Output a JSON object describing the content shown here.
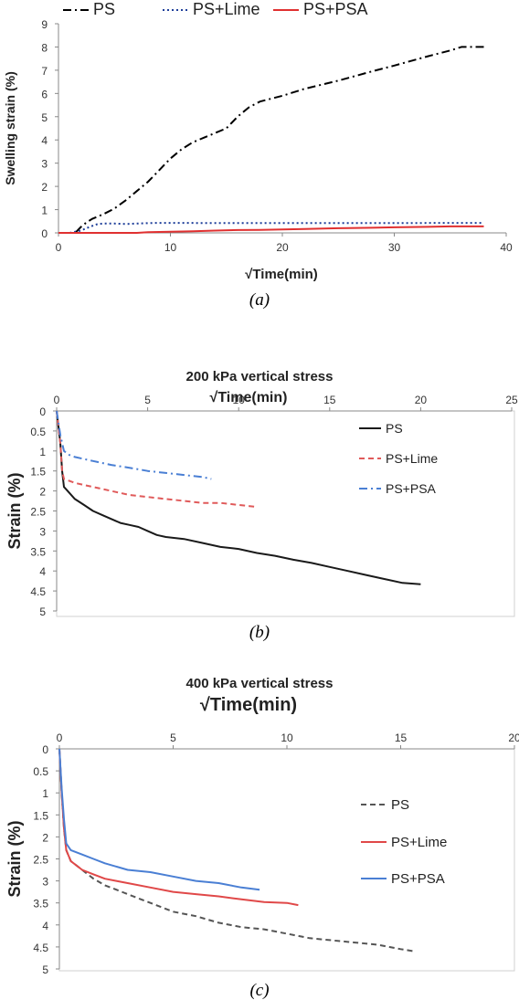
{
  "chart_data": [
    {
      "type": "line",
      "title": "",
      "caption": "(a)",
      "xlabel": "√Time(min)",
      "ylabel": "Swelling strain (%)",
      "xlim": [
        0,
        40
      ],
      "ylim": [
        0,
        9
      ],
      "xticks": [
        0,
        10,
        20,
        30,
        40
      ],
      "yticks": [
        0,
        1,
        2,
        3,
        4,
        5,
        6,
        7,
        8,
        9
      ],
      "x_axis_position": "bottom",
      "y_inverted": false,
      "grid": false,
      "legend_position": "top",
      "series": [
        {
          "name": "PS",
          "color": "#000000",
          "dash": "dashdot",
          "points": [
            [
              0,
              0
            ],
            [
              1.2,
              0
            ],
            [
              1.6,
              0.05
            ],
            [
              2,
              0.25
            ],
            [
              2.5,
              0.45
            ],
            [
              3,
              0.6
            ],
            [
              4,
              0.8
            ],
            [
              5,
              1.05
            ],
            [
              6,
              1.4
            ],
            [
              7,
              1.8
            ],
            [
              8,
              2.2
            ],
            [
              9,
              2.7
            ],
            [
              10,
              3.2
            ],
            [
              11,
              3.6
            ],
            [
              12,
              3.9
            ],
            [
              13,
              4.1
            ],
            [
              15,
              4.5
            ],
            [
              16,
              5.0
            ],
            [
              17,
              5.4
            ],
            [
              18,
              5.65
            ],
            [
              20,
              5.9
            ],
            [
              22,
              6.2
            ],
            [
              25,
              6.55
            ],
            [
              28,
              6.95
            ],
            [
              30,
              7.2
            ],
            [
              33,
              7.6
            ],
            [
              35,
              7.85
            ],
            [
              36,
              8.0
            ],
            [
              37,
              8.0
            ],
            [
              38,
              8.0
            ]
          ]
        },
        {
          "name": "PS+Lime",
          "color": "#1f3f9a",
          "dash": "dotted",
          "points": [
            [
              1,
              0
            ],
            [
              1.5,
              0.05
            ],
            [
              2,
              0.1
            ],
            [
              2.5,
              0.2
            ],
            [
              3,
              0.3
            ],
            [
              3.5,
              0.38
            ],
            [
              4,
              0.4
            ],
            [
              5,
              0.4
            ],
            [
              6,
              0.38
            ],
            [
              7,
              0.4
            ],
            [
              8,
              0.42
            ],
            [
              9,
              0.43
            ],
            [
              10,
              0.43
            ],
            [
              15,
              0.42
            ],
            [
              20,
              0.42
            ],
            [
              25,
              0.42
            ],
            [
              30,
              0.42
            ],
            [
              35,
              0.43
            ],
            [
              38,
              0.43
            ]
          ]
        },
        {
          "name": "PS+PSA",
          "color": "#e03030",
          "dash": "solid",
          "points": [
            [
              0,
              0
            ],
            [
              7,
              0
            ],
            [
              8,
              0.03
            ],
            [
              10,
              0.05
            ],
            [
              12,
              0.07
            ],
            [
              14,
              0.1
            ],
            [
              16,
              0.12
            ],
            [
              18,
              0.13
            ],
            [
              20,
              0.15
            ],
            [
              22,
              0.17
            ],
            [
              25,
              0.2
            ],
            [
              28,
              0.22
            ],
            [
              30,
              0.24
            ],
            [
              33,
              0.26
            ],
            [
              35,
              0.28
            ],
            [
              38,
              0.28
            ]
          ]
        }
      ]
    },
    {
      "type": "line",
      "title": "200 kPa vertical stress",
      "caption": "(b)",
      "xlabel": "√Time(min)",
      "ylabel": "Strain (%)",
      "xlim": [
        0,
        25
      ],
      "ylim": [
        0,
        5
      ],
      "xticks": [
        0,
        5,
        10,
        15,
        20,
        25
      ],
      "yticks": [
        0,
        0.5,
        1,
        1.5,
        2,
        2.5,
        3,
        3.5,
        4,
        4.5,
        5
      ],
      "x_axis_position": "top",
      "y_inverted": true,
      "grid": false,
      "legend_position": "right",
      "series": [
        {
          "name": "PS",
          "color": "#1a1a1a",
          "dash": "solid",
          "points": [
            [
              0,
              0
            ],
            [
              0.2,
              0.8
            ],
            [
              0.3,
              1.5
            ],
            [
              0.4,
              1.9
            ],
            [
              0.6,
              2.0
            ],
            [
              1,
              2.2
            ],
            [
              1.5,
              2.35
            ],
            [
              2,
              2.5
            ],
            [
              2.5,
              2.6
            ],
            [
              3,
              2.7
            ],
            [
              3.5,
              2.8
            ],
            [
              4,
              2.85
            ],
            [
              4.5,
              2.9
            ],
            [
              5,
              3.0
            ],
            [
              5.5,
              3.1
            ],
            [
              6,
              3.15
            ],
            [
              7,
              3.2
            ],
            [
              8,
              3.3
            ],
            [
              9,
              3.4
            ],
            [
              10,
              3.45
            ],
            [
              11,
              3.55
            ],
            [
              12,
              3.62
            ],
            [
              13,
              3.72
            ],
            [
              14,
              3.8
            ],
            [
              15,
              3.9
            ],
            [
              16,
              4.0
            ],
            [
              17,
              4.1
            ],
            [
              18,
              4.2
            ],
            [
              19,
              4.3
            ],
            [
              20,
              4.33
            ]
          ]
        },
        {
          "name": "PS+Lime",
          "color": "#e05a5a",
          "dash": "dashed",
          "points": [
            [
              0,
              0
            ],
            [
              0.2,
              0.8
            ],
            [
              0.3,
              1.5
            ],
            [
              0.4,
              1.7
            ],
            [
              0.7,
              1.75
            ],
            [
              1,
              1.8
            ],
            [
              2,
              1.9
            ],
            [
              3,
              2.0
            ],
            [
              4,
              2.1
            ],
            [
              5,
              2.15
            ],
            [
              6,
              2.2
            ],
            [
              7,
              2.25
            ],
            [
              8,
              2.3
            ],
            [
              9,
              2.3
            ],
            [
              10,
              2.35
            ],
            [
              11,
              2.4
            ]
          ]
        },
        {
          "name": "PS+PSA",
          "color": "#4a7fd4",
          "dash": "dashdot",
          "points": [
            [
              0,
              0
            ],
            [
              0.2,
              0.6
            ],
            [
              0.4,
              1.0
            ],
            [
              0.7,
              1.1
            ],
            [
              1,
              1.15
            ],
            [
              2,
              1.25
            ],
            [
              3,
              1.35
            ],
            [
              4,
              1.42
            ],
            [
              5,
              1.5
            ],
            [
              6,
              1.55
            ],
            [
              7,
              1.6
            ],
            [
              8,
              1.65
            ],
            [
              8.5,
              1.7
            ]
          ]
        }
      ]
    },
    {
      "type": "line",
      "title": "400 kPa vertical stress",
      "caption": "(c)",
      "xlabel": "√Time(min)",
      "ylabel": "Strain (%)",
      "xlim": [
        0,
        20
      ],
      "ylim": [
        0,
        5
      ],
      "xticks": [
        0,
        5,
        10,
        15,
        20
      ],
      "yticks": [
        0,
        0.5,
        1,
        1.5,
        2,
        2.5,
        3,
        3.5,
        4,
        4.5,
        5
      ],
      "x_axis_position": "top",
      "y_inverted": true,
      "grid": false,
      "legend_position": "right",
      "series": [
        {
          "name": "PS",
          "color": "#555555",
          "dash": "dashed",
          "points": [
            [
              0,
              0
            ],
            [
              0.1,
              1.0
            ],
            [
              0.2,
              1.8
            ],
            [
              0.3,
              2.3
            ],
            [
              0.5,
              2.55
            ],
            [
              1,
              2.75
            ],
            [
              1.5,
              2.95
            ],
            [
              2,
              3.1
            ],
            [
              2.5,
              3.2
            ],
            [
              3,
              3.3
            ],
            [
              3.5,
              3.4
            ],
            [
              4,
              3.5
            ],
            [
              4.5,
              3.6
            ],
            [
              5,
              3.7
            ],
            [
              6,
              3.8
            ],
            [
              7,
              3.95
            ],
            [
              8,
              4.05
            ],
            [
              9,
              4.1
            ],
            [
              10,
              4.2
            ],
            [
              11,
              4.3
            ],
            [
              12,
              4.35
            ],
            [
              13,
              4.4
            ],
            [
              14,
              4.45
            ],
            [
              15,
              4.55
            ],
            [
              15.6,
              4.6
            ]
          ]
        },
        {
          "name": "PS+Lime",
          "color": "#e04848",
          "dash": "solid",
          "points": [
            [
              0,
              0
            ],
            [
              0.1,
              1.0
            ],
            [
              0.2,
              1.8
            ],
            [
              0.3,
              2.3
            ],
            [
              0.5,
              2.55
            ],
            [
              1,
              2.75
            ],
            [
              1.5,
              2.85
            ],
            [
              2,
              2.95
            ],
            [
              2.5,
              3.0
            ],
            [
              3,
              3.05
            ],
            [
              4,
              3.15
            ],
            [
              5,
              3.25
            ],
            [
              6,
              3.3
            ],
            [
              7,
              3.35
            ],
            [
              8,
              3.42
            ],
            [
              9,
              3.48
            ],
            [
              10,
              3.5
            ],
            [
              10.5,
              3.55
            ]
          ]
        },
        {
          "name": "PS+PSA",
          "color": "#4a7fd4",
          "dash": "solid",
          "points": [
            [
              0,
              0
            ],
            [
              0.1,
              0.9
            ],
            [
              0.2,
              1.6
            ],
            [
              0.3,
              2.15
            ],
            [
              0.5,
              2.3
            ],
            [
              1,
              2.4
            ],
            [
              1.5,
              2.5
            ],
            [
              2,
              2.6
            ],
            [
              3,
              2.75
            ],
            [
              4,
              2.8
            ],
            [
              5,
              2.9
            ],
            [
              6,
              3.0
            ],
            [
              7,
              3.05
            ],
            [
              8,
              3.15
            ],
            [
              8.8,
              3.2
            ]
          ]
        }
      ]
    }
  ]
}
